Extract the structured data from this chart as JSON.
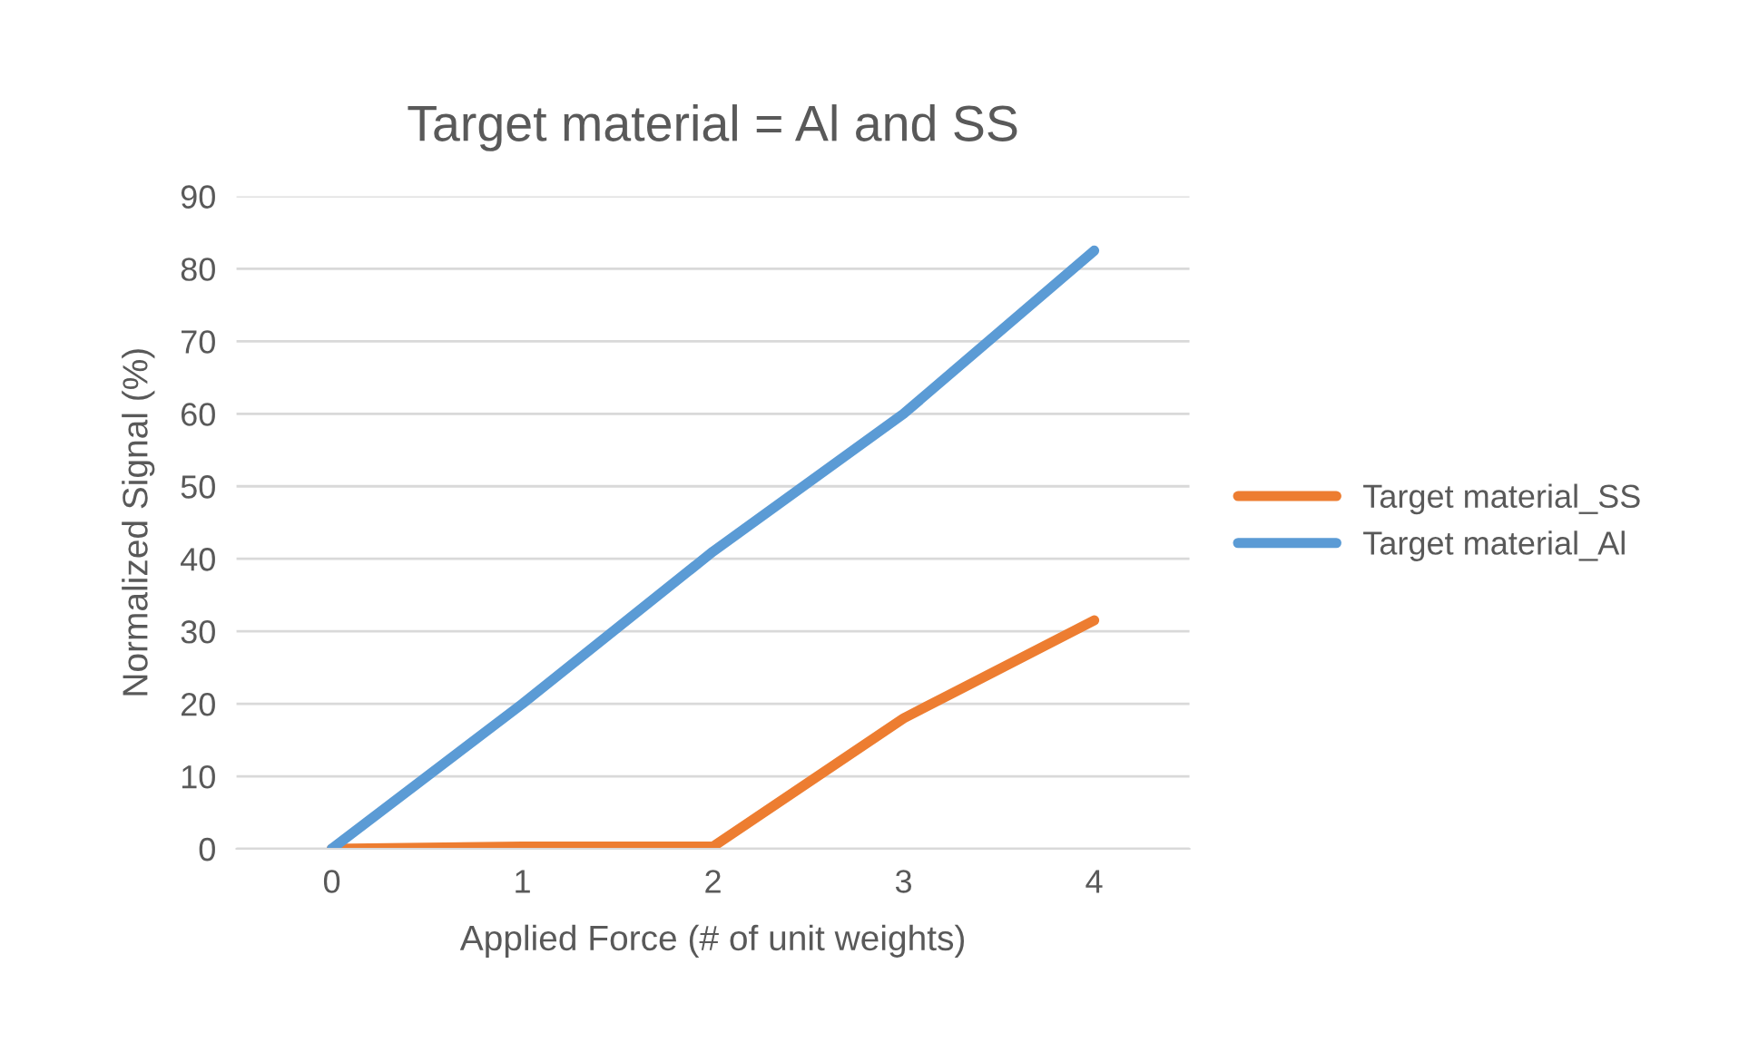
{
  "chart_data": {
    "type": "line",
    "title": "Target material = Al and SS",
    "xlabel": "Applied Force (# of unit weights)",
    "ylabel": "Normalized Signal (%)",
    "categories": [
      "0",
      "1",
      "2",
      "3",
      "4"
    ],
    "series": [
      {
        "name": "Target material_SS",
        "color": "#ed7d31",
        "values": [
          0,
          0.3,
          0.3,
          18,
          31.5
        ]
      },
      {
        "name": "Target material_Al",
        "color": "#5b9bd5",
        "values": [
          0,
          20,
          41,
          60,
          82.5
        ]
      }
    ],
    "ylim": [
      0,
      90
    ],
    "yticks": [
      0,
      10,
      20,
      30,
      40,
      50,
      60,
      70,
      80,
      90
    ],
    "grid": "y",
    "legend": "right",
    "marker": "none",
    "line_style": "solid"
  }
}
